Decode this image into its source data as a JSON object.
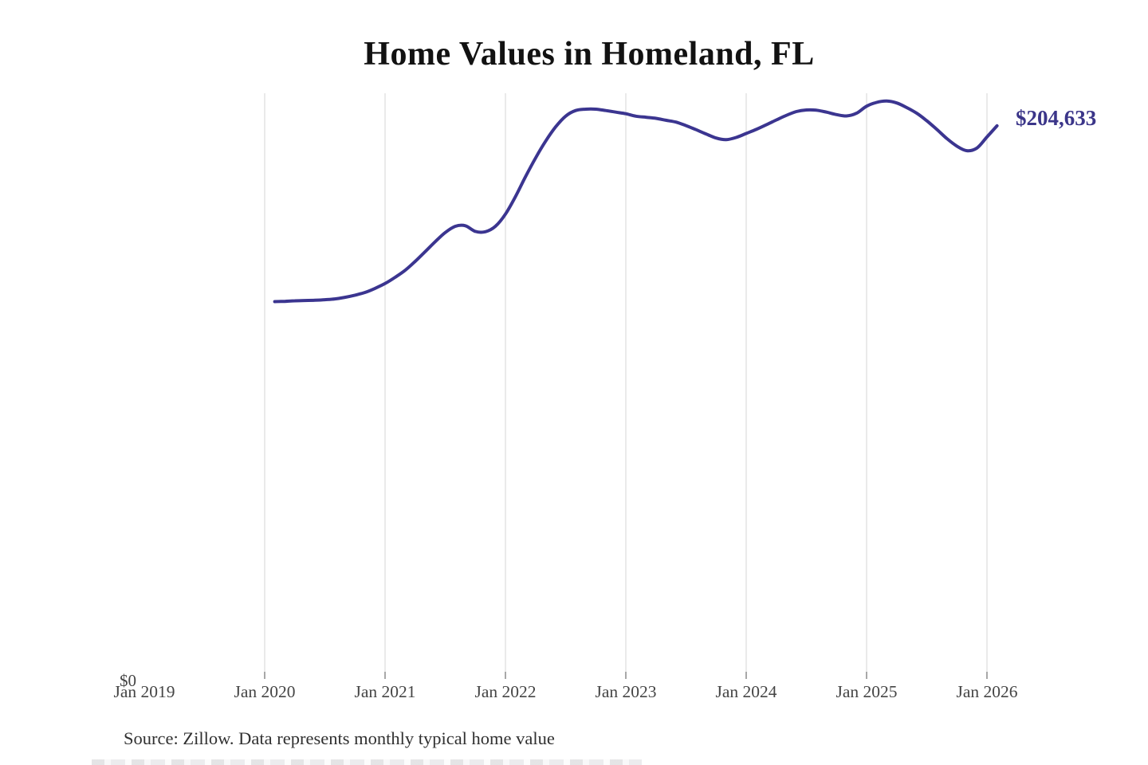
{
  "header": {
    "title": "Home Values in Homeland, FL"
  },
  "chart_data": {
    "type": "line",
    "title": "Home Values in Homeland, FL",
    "xlabel": "",
    "ylabel": "",
    "ylim": [
      0,
      216700
    ],
    "y_zero_label": "$0",
    "grid": "vertical yearly gridlines with bottom tick marks",
    "legend": "none",
    "line_color": "#3b3590",
    "gridline_color": "#d4d4d6",
    "tick_color": "#8a8a8a",
    "x_tick_labels": [
      "Jan 2019",
      "Jan 2020",
      "Jan 2021",
      "Jan 2022",
      "Jan 2023",
      "Jan 2024",
      "Jan 2025",
      "Jan 2026"
    ],
    "end_label": {
      "text": "$204,633",
      "color": "#3b3589"
    },
    "latest_value": 204633,
    "series": [
      {
        "name": "Monthly typical home value",
        "months": [
          "2020-02",
          "2020-03",
          "2020-04",
          "2020-05",
          "2020-06",
          "2020-07",
          "2020-08",
          "2020-09",
          "2020-10",
          "2020-11",
          "2020-12",
          "2021-01",
          "2021-02",
          "2021-03",
          "2021-04",
          "2021-05",
          "2021-06",
          "2021-07",
          "2021-08",
          "2021-09",
          "2021-10",
          "2021-11",
          "2021-12",
          "2022-01",
          "2022-02",
          "2022-03",
          "2022-04",
          "2022-05",
          "2022-06",
          "2022-07",
          "2022-08",
          "2022-09",
          "2022-10",
          "2022-11",
          "2022-12",
          "2023-01",
          "2023-02",
          "2023-03",
          "2023-04",
          "2023-05",
          "2023-06",
          "2023-07",
          "2023-08",
          "2023-09",
          "2023-10",
          "2023-11",
          "2023-12",
          "2024-01",
          "2024-02",
          "2024-03",
          "2024-04",
          "2024-05",
          "2024-06",
          "2024-07",
          "2024-08",
          "2024-09",
          "2024-10",
          "2024-11",
          "2024-12",
          "2025-01",
          "2025-02",
          "2025-03",
          "2025-04",
          "2025-05",
          "2025-06",
          "2025-07",
          "2025-08",
          "2025-09",
          "2025-10",
          "2025-11",
          "2025-12",
          "2026-01",
          "2026-02"
        ],
        "values": [
          139500,
          139600,
          139800,
          139900,
          140000,
          140200,
          140500,
          141100,
          141900,
          142900,
          144400,
          146200,
          148500,
          151100,
          154400,
          158000,
          161700,
          165100,
          167400,
          167600,
          165500,
          165400,
          167400,
          171900,
          178400,
          185800,
          192700,
          198900,
          204200,
          208200,
          210300,
          210800,
          210800,
          210300,
          209700,
          209100,
          208200,
          207800,
          207400,
          206700,
          206000,
          204700,
          203200,
          201600,
          200100,
          199500,
          200300,
          201800,
          203300,
          205000,
          206800,
          208500,
          209900,
          210500,
          210400,
          209700,
          208800,
          208300,
          209300,
          211900,
          213300,
          213800,
          213100,
          211400,
          209300,
          206500,
          203300,
          199900,
          197100,
          195400,
          196400,
          200500,
          204633
        ]
      }
    ]
  },
  "footer": {
    "source_note": "Source: Zillow. Data represents monthly typical home value"
  }
}
